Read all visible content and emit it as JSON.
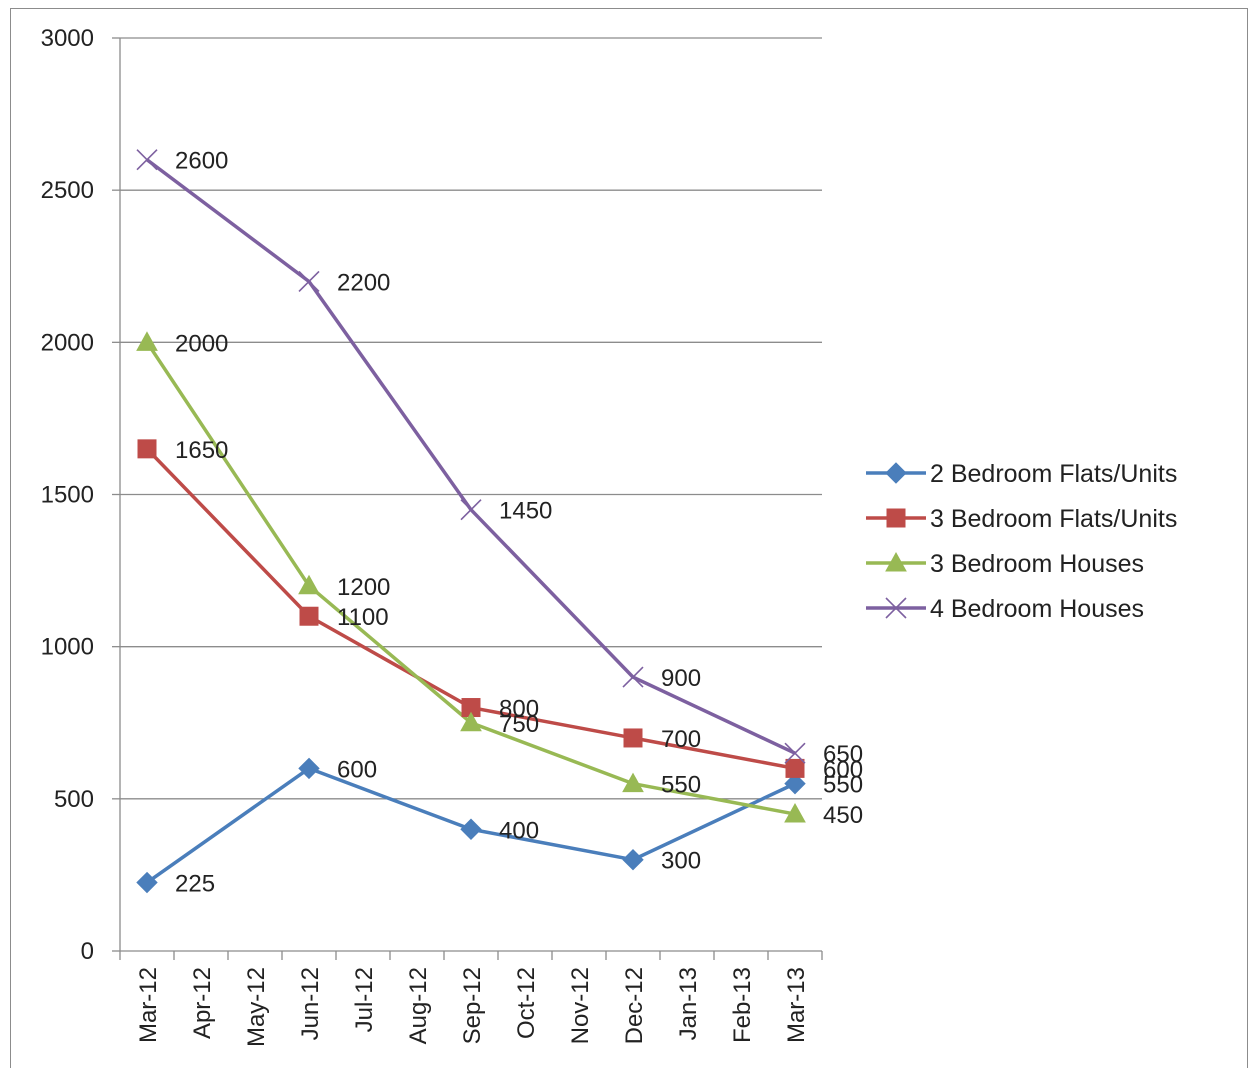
{
  "chart_data": {
    "type": "line",
    "title": "",
    "xlabel": "",
    "ylabel": "",
    "ylim": [
      0,
      3000
    ],
    "yticks": [
      0,
      500,
      1000,
      1500,
      2000,
      2500,
      3000
    ],
    "grid": "horizontal",
    "legend_position": "right",
    "categories": [
      "Mar-12",
      "Apr-12",
      "May-12",
      "Jun-12",
      "Jul-12",
      "Aug-12",
      "Sep-12",
      "Oct-12",
      "Nov-12",
      "Dec-12",
      "Jan-13",
      "Feb-13",
      "Mar-13"
    ],
    "series": [
      {
        "name": "2 Bedroom Flats/Units",
        "color": "#4a7ebb",
        "marker": "diamond",
        "points": [
          {
            "x": "Mar-12",
            "y": 225
          },
          {
            "x": "Jun-12",
            "y": 600
          },
          {
            "x": "Sep-12",
            "y": 400
          },
          {
            "x": "Dec-12",
            "y": 300
          },
          {
            "x": "Mar-13",
            "y": 550
          }
        ]
      },
      {
        "name": "3 Bedroom Flats/Units",
        "color": "#be4b48",
        "marker": "square",
        "points": [
          {
            "x": "Mar-12",
            "y": 1650
          },
          {
            "x": "Jun-12",
            "y": 1100
          },
          {
            "x": "Sep-12",
            "y": 800
          },
          {
            "x": "Dec-12",
            "y": 700
          },
          {
            "x": "Mar-13",
            "y": 600
          }
        ]
      },
      {
        "name": "3 Bedroom Houses",
        "color": "#98b954",
        "marker": "triangle",
        "points": [
          {
            "x": "Mar-12",
            "y": 2000
          },
          {
            "x": "Jun-12",
            "y": 1200
          },
          {
            "x": "Sep-12",
            "y": 750
          },
          {
            "x": "Dec-12",
            "y": 550
          },
          {
            "x": "Mar-13",
            "y": 450
          }
        ]
      },
      {
        "name": "4 Bedroom Houses",
        "color": "#7d60a0",
        "marker": "x",
        "points": [
          {
            "x": "Mar-12",
            "y": 2600
          },
          {
            "x": "Jun-12",
            "y": 2200
          },
          {
            "x": "Sep-12",
            "y": 1450
          },
          {
            "x": "Dec-12",
            "y": 900
          },
          {
            "x": "Mar-13",
            "y": 650
          }
        ]
      }
    ]
  }
}
